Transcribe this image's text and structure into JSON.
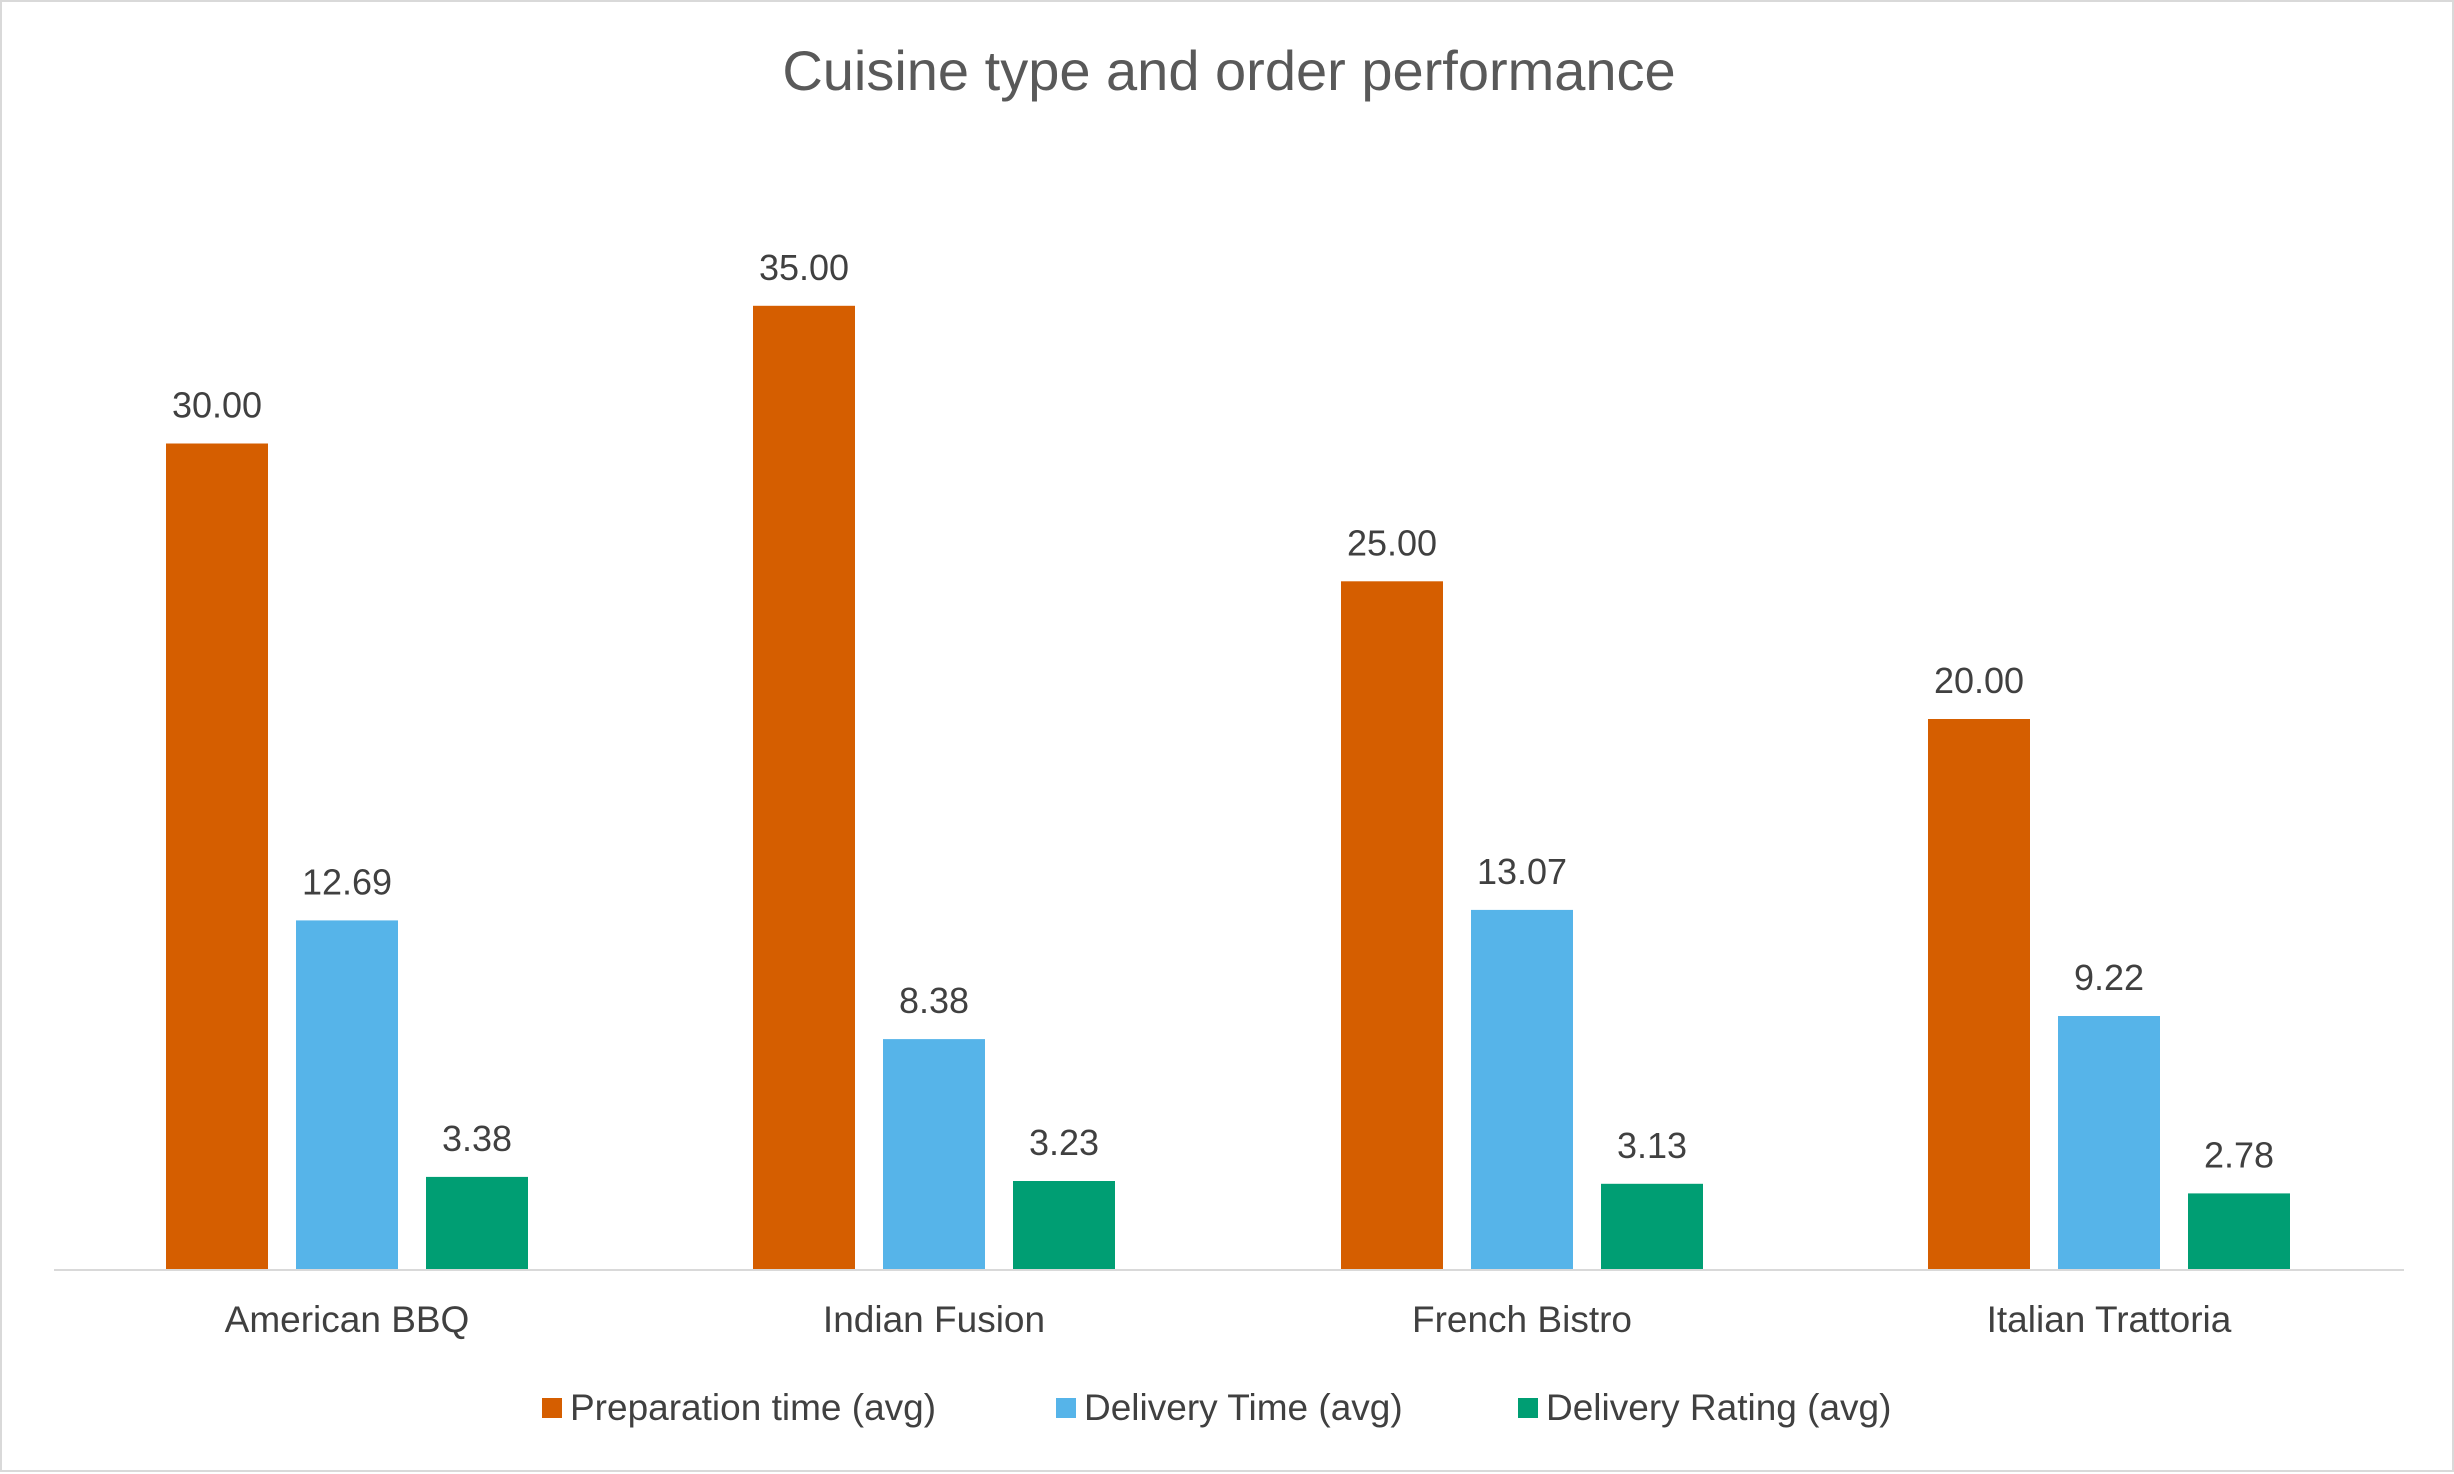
{
  "chart_data": {
    "type": "bar",
    "title": "Cuisine type and order performance",
    "categories": [
      "American BBQ",
      "Indian Fusion",
      "French Bistro",
      "Italian Trattoria"
    ],
    "series": [
      {
        "name": "Preparation time (avg)",
        "color": "#d55e00",
        "values": [
          30.0,
          35.0,
          25.0,
          20.0
        ],
        "labels": [
          "30.00",
          "35.00",
          "25.00",
          "20.00"
        ]
      },
      {
        "name": "Delivery Time (avg)",
        "color": "#56b4e9",
        "values": [
          12.69,
          8.38,
          13.07,
          9.22
        ],
        "labels": [
          "12.69",
          "8.38",
          "13.07",
          "9.22"
        ]
      },
      {
        "name": "Delivery Rating (avg)",
        "color": "#009e73",
        "values": [
          3.38,
          3.23,
          3.13,
          2.78
        ],
        "labels": [
          "3.38",
          "3.23",
          "3.13",
          "2.78"
        ]
      }
    ],
    "xlabel": "",
    "ylabel": "",
    "ylim": [
      0,
      40
    ],
    "grid": false,
    "legend_position": "bottom",
    "data_labels": true
  }
}
